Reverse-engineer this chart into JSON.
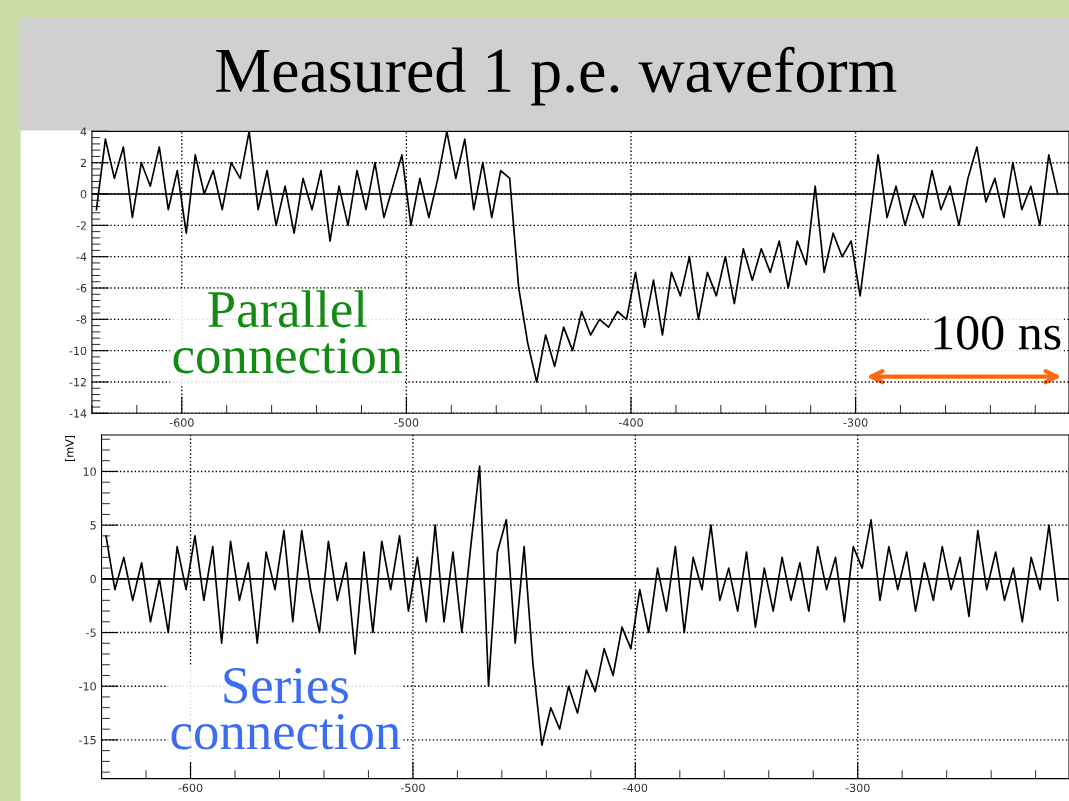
{
  "chart_data": [
    {
      "type": "line",
      "title": "Measured 1 p.e. waveform",
      "annotations": [
        "Parallel connection",
        "100 ns"
      ],
      "x": [
        -638,
        -634,
        -630,
        -626,
        -622,
        -618,
        -614,
        -610,
        -606,
        -602,
        -598,
        -594,
        -590,
        -586,
        -582,
        -578,
        -574,
        -570,
        -566,
        -562,
        -558,
        -554,
        -550,
        -546,
        -542,
        -538,
        -534,
        -530,
        -526,
        -522,
        -518,
        -514,
        -510,
        -506,
        -502,
        -498,
        -494,
        -490,
        -486,
        -482,
        -478,
        -474,
        -470,
        -466,
        -462,
        -458,
        -454,
        -450,
        -446,
        -442,
        -438,
        -434,
        -430,
        -426,
        -422,
        -418,
        -414,
        -410,
        -406,
        -402,
        -398,
        -394,
        -390,
        -386,
        -382,
        -378,
        -374,
        -370,
        -366,
        -362,
        -358,
        -354,
        -350,
        -346,
        -342,
        -338,
        -334,
        -330,
        -326,
        -322,
        -318,
        -314,
        -310,
        -306,
        -302,
        -298,
        -294,
        -290,
        -286,
        -282,
        -278,
        -274,
        -270,
        -266,
        -262,
        -258,
        -254,
        -250,
        -246,
        -242,
        -238,
        -234,
        -230,
        -226,
        -222,
        -218,
        -214,
        -210
      ],
      "series": [
        {
          "color": "#000000",
          "values": [
            -1,
            3.5,
            1,
            3,
            -1.5,
            2,
            0.5,
            3,
            -1,
            1.5,
            -2.5,
            2.5,
            0,
            1.5,
            -1,
            2,
            1,
            4,
            -1,
            1.5,
            -2,
            0.5,
            -2.5,
            1,
            -1,
            1.5,
            -3,
            0.5,
            -2,
            1.5,
            -1,
            2,
            -1.5,
            0.5,
            2.5,
            -2,
            1,
            -1.5,
            1,
            4,
            1,
            3.5,
            -1,
            2,
            -1.5,
            1.5,
            1,
            -6,
            -9.5,
            -12,
            -9,
            -11,
            -8.5,
            -10,
            -7.5,
            -9,
            -8,
            -8.5,
            -7.5,
            -8,
            -5,
            -8.5,
            -5.5,
            -9,
            -5,
            -6.5,
            -4,
            -8,
            -5,
            -6.5,
            -4,
            -7,
            -3.5,
            -5.5,
            -3.5,
            -5,
            -3,
            -6,
            -3,
            -4.5,
            0.5,
            -5,
            -2.5,
            -4,
            -3,
            -6.5,
            -2,
            2.5,
            -1.5,
            0.5,
            -2,
            0,
            -1.5,
            1.5,
            -1,
            0.5,
            -2,
            1,
            3,
            -0.5,
            1,
            -1.5,
            2,
            -1,
            0.5,
            -2,
            2.5,
            0
          ]
        }
      ],
      "xlim": [
        -640,
        -205
      ],
      "xticks": [
        -600,
        -500,
        -400,
        -300
      ],
      "ylim": [
        -14,
        4
      ],
      "yticks": [
        -14,
        -12,
        -10,
        -8,
        -6,
        -4,
        -2,
        0,
        2,
        4
      ],
      "grid": true,
      "ref_lines": [
        {
          "axis": "y",
          "value": 0
        }
      ]
    },
    {
      "type": "line",
      "ylabel": "[mV]",
      "annotations": [
        "Series connection"
      ],
      "x": [
        -638,
        -634,
        -630,
        -626,
        -622,
        -618,
        -614,
        -610,
        -606,
        -602,
        -598,
        -594,
        -590,
        -586,
        -582,
        -578,
        -574,
        -570,
        -566,
        -562,
        -558,
        -554,
        -550,
        -546,
        -542,
        -538,
        -534,
        -530,
        -526,
        -522,
        -518,
        -514,
        -510,
        -506,
        -502,
        -498,
        -494,
        -490,
        -486,
        -482,
        -478,
        -474,
        -470,
        -466,
        -462,
        -458,
        -454,
        -450,
        -446,
        -442,
        -438,
        -434,
        -430,
        -426,
        -422,
        -418,
        -414,
        -410,
        -406,
        -402,
        -398,
        -394,
        -390,
        -386,
        -382,
        -378,
        -374,
        -370,
        -366,
        -362,
        -358,
        -354,
        -350,
        -346,
        -342,
        -338,
        -334,
        -330,
        -326,
        -322,
        -318,
        -314,
        -310,
        -306,
        -302,
        -298,
        -294,
        -290,
        -286,
        -282,
        -278,
        -274,
        -270,
        -266,
        -262,
        -258,
        -254,
        -250,
        -246,
        -242,
        -238,
        -234,
        -230,
        -226,
        -222,
        -218,
        -214,
        -210
      ],
      "series": [
        {
          "color": "#000000",
          "values": [
            4,
            -1,
            2,
            -2,
            1.5,
            -4,
            0,
            -5,
            3,
            -1,
            4,
            -2,
            3,
            -6,
            3.5,
            -2,
            1.5,
            -6,
            2.5,
            -1,
            4.5,
            -4,
            4.5,
            -1,
            -5,
            3.5,
            -2,
            1.5,
            -7,
            2.5,
            -5,
            3.5,
            -1,
            4,
            -3,
            2,
            -4,
            5,
            -4,
            2.5,
            -5,
            3,
            10.5,
            -10,
            2.5,
            5.5,
            -6,
            3,
            -8,
            -15.5,
            -12,
            -14,
            -10,
            -12.5,
            -8.5,
            -10.5,
            -6.5,
            -9,
            -4.5,
            -6.5,
            -1,
            -5,
            1,
            -3,
            3,
            -5,
            2,
            -1,
            5,
            -2,
            1,
            -3,
            2.5,
            -4.5,
            1,
            -3,
            2,
            -2,
            1.5,
            -3,
            3,
            -1,
            2,
            -4,
            3,
            1,
            5.5,
            -2,
            3,
            -1,
            2.5,
            -3,
            1.5,
            -2,
            3,
            -1,
            2,
            -3.5,
            4.5,
            -1,
            2.5,
            -2,
            1,
            -4,
            2,
            -1,
            5,
            -2
          ]
        }
      ],
      "xlim": [
        -640,
        -205
      ],
      "xticks": [
        -600,
        -500,
        -400,
        -300
      ],
      "ylim": [
        -18.6,
        13.4
      ],
      "yticks": [
        -15,
        -10,
        -5,
        0,
        5,
        10
      ],
      "grid": true,
      "ref_lines": [
        {
          "axis": "y",
          "value": 0
        }
      ]
    }
  ]
}
